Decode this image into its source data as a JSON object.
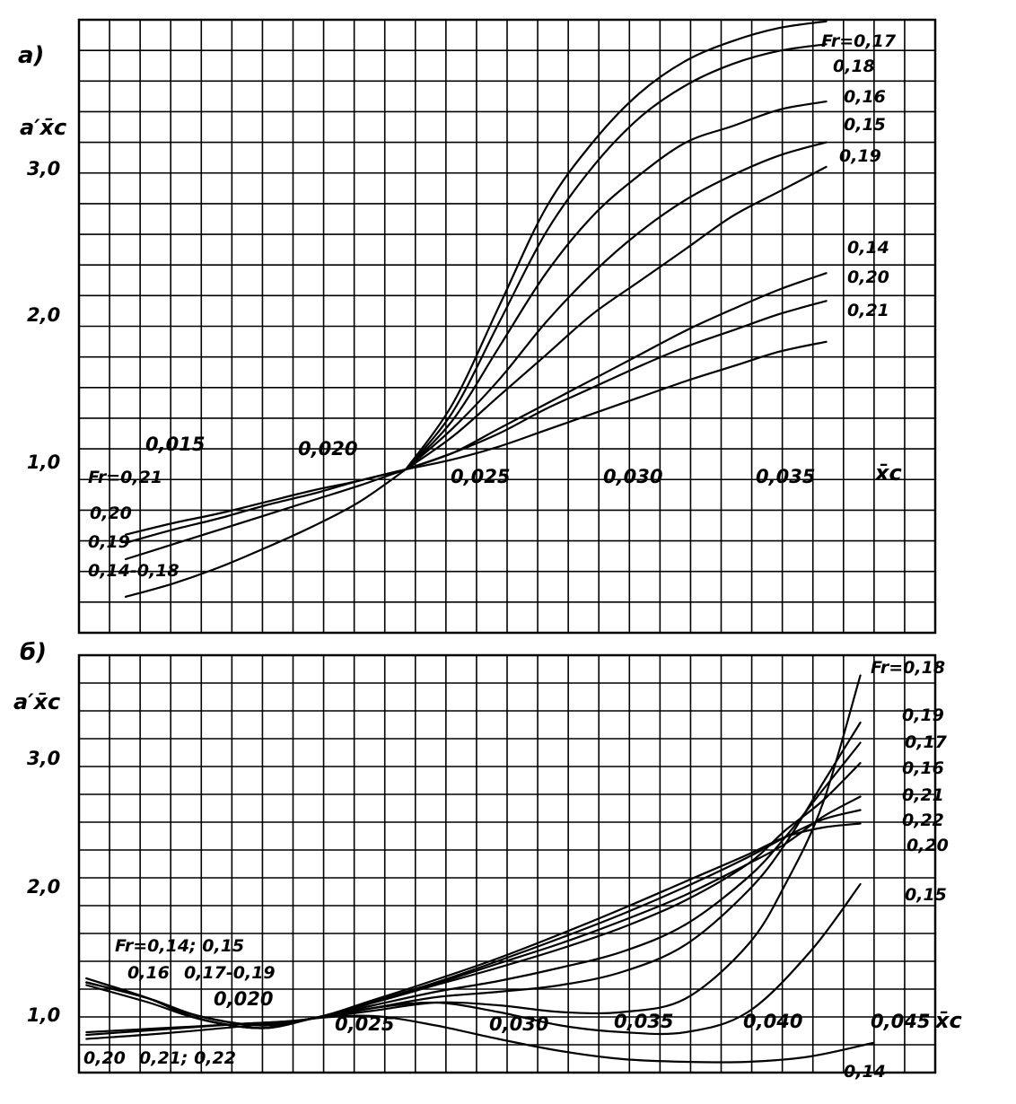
{
  "chart_data": [
    {
      "type": "line",
      "panel_label": "a)",
      "ylabel": "a′x̄c",
      "xlabel": "x̄c",
      "xlim": [
        0.012,
        0.0395
      ],
      "ylim": [
        0.0,
        3.75
      ],
      "grid": true,
      "x_tick_labels": [
        "0,015",
        "0,020",
        "0,025",
        "0,030",
        "0,035"
      ],
      "y_tick_labels": [
        "1,0",
        "2,0",
        "3,0"
      ],
      "series": [
        {
          "name": "0,17",
          "x": [
            0.0225,
            0.024,
            0.0255,
            0.027,
            0.0285,
            0.03,
            0.0315,
            0.033,
            0.0345,
            0.036
          ],
          "y": [
            1.0,
            1.4,
            2.0,
            2.6,
            3.0,
            3.3,
            3.5,
            3.62,
            3.7,
            3.74
          ]
        },
        {
          "name": "0,18",
          "x": [
            0.0225,
            0.024,
            0.0255,
            0.027,
            0.0285,
            0.03,
            0.0315,
            0.033,
            0.0345,
            0.036
          ],
          "y": [
            1.0,
            1.35,
            1.9,
            2.45,
            2.85,
            3.15,
            3.35,
            3.48,
            3.56,
            3.6
          ]
        },
        {
          "name": "0,16",
          "x": [
            0.0225,
            0.024,
            0.0255,
            0.027,
            0.0285,
            0.03,
            0.0315,
            0.033,
            0.0345,
            0.036
          ],
          "y": [
            1.0,
            1.3,
            1.75,
            2.2,
            2.55,
            2.8,
            3.0,
            3.1,
            3.2,
            3.25
          ]
        },
        {
          "name": "0,15",
          "x": [
            0.0225,
            0.024,
            0.0255,
            0.027,
            0.0285,
            0.03,
            0.0315,
            0.033,
            0.0345,
            0.036
          ],
          "y": [
            1.0,
            1.25,
            1.55,
            1.9,
            2.2,
            2.45,
            2.65,
            2.8,
            2.92,
            3.0
          ]
        },
        {
          "name": "0,19",
          "x": [
            0.0225,
            0.024,
            0.0255,
            0.027,
            0.0285,
            0.03,
            0.0315,
            0.033,
            0.0345,
            0.036
          ],
          "y": [
            1.0,
            1.2,
            1.45,
            1.7,
            1.95,
            2.15,
            2.35,
            2.55,
            2.7,
            2.85
          ]
        },
        {
          "name": "0,14",
          "x": [
            0.0225,
            0.024,
            0.0255,
            0.027,
            0.0285,
            0.03,
            0.0315,
            0.033,
            0.0345,
            0.036
          ],
          "y": [
            1.0,
            1.1,
            1.25,
            1.4,
            1.55,
            1.7,
            1.85,
            1.98,
            2.1,
            2.2
          ]
        },
        {
          "name": "0,20",
          "x": [
            0.0225,
            0.024,
            0.0255,
            0.027,
            0.0285,
            0.03,
            0.0315,
            0.033,
            0.0345,
            0.036
          ],
          "y": [
            1.0,
            1.1,
            1.22,
            1.37,
            1.5,
            1.63,
            1.75,
            1.85,
            1.95,
            2.03
          ]
        },
        {
          "name": "0,21",
          "x": [
            0.0225,
            0.024,
            0.0255,
            0.027,
            0.0285,
            0.03,
            0.0315,
            0.033,
            0.0345,
            0.036
          ],
          "y": [
            1.0,
            1.06,
            1.14,
            1.24,
            1.34,
            1.44,
            1.54,
            1.63,
            1.72,
            1.78
          ]
        },
        {
          "name": "Fr=0,21",
          "x": [
            0.0135,
            0.015,
            0.0165,
            0.018,
            0.0195,
            0.021,
            0.0225
          ],
          "y": [
            0.6,
            0.67,
            0.73,
            0.8,
            0.87,
            0.93,
            1.0
          ]
        },
        {
          "name": "0,20",
          "x": [
            0.0135,
            0.015,
            0.0165,
            0.018,
            0.0195,
            0.021,
            0.0225
          ],
          "y": [
            0.55,
            0.63,
            0.7,
            0.78,
            0.85,
            0.93,
            1.0
          ]
        },
        {
          "name": "0,19",
          "x": [
            0.0135,
            0.015,
            0.0165,
            0.018,
            0.0195,
            0.021,
            0.0225
          ],
          "y": [
            0.45,
            0.54,
            0.63,
            0.72,
            0.81,
            0.9,
            1.0
          ]
        },
        {
          "name": "0,14-0,18",
          "x": [
            0.0135,
            0.015,
            0.0165,
            0.018,
            0.0195,
            0.021,
            0.0225
          ],
          "y": [
            0.22,
            0.3,
            0.4,
            0.52,
            0.65,
            0.8,
            1.0
          ]
        }
      ],
      "curve_labels": {
        "right": [
          "Fr=0,17",
          "0,18",
          "0,16",
          "0,15",
          "0,19",
          "0,14",
          "0,20",
          "0,21"
        ],
        "left": [
          "Fr=0,21",
          "0,20",
          "0,19",
          "0,14-0,18"
        ]
      }
    },
    {
      "type": "line",
      "panel_label": "б)",
      "ylabel": "a′x̄c",
      "xlabel": "x̄c",
      "xlim": [
        0.0132,
        0.0475
      ],
      "ylim": [
        0.6,
        3.7
      ],
      "grid": true,
      "x_tick_labels": [
        "0,020",
        "0,025",
        "0,030",
        "0,035",
        "0,040",
        "0,045"
      ],
      "y_tick_labels": [
        "1,0",
        "2,0",
        "3,0"
      ],
      "series": [
        {
          "name": "0,18",
          "x": [
            0.0135,
            0.016,
            0.018,
            0.0205,
            0.0225,
            0.025,
            0.0275,
            0.03,
            0.0325,
            0.035,
            0.0375,
            0.04,
            0.0415,
            0.043,
            0.0445
          ],
          "y": [
            1.27,
            1.15,
            1.02,
            0.95,
            1.0,
            1.06,
            1.12,
            1.1,
            1.05,
            1.05,
            1.15,
            1.55,
            2.0,
            2.6,
            3.55
          ]
        },
        {
          "name": "0,19",
          "x": [
            0.0135,
            0.016,
            0.018,
            0.0205,
            0.0225,
            0.025,
            0.0275,
            0.03,
            0.0325,
            0.035,
            0.0375,
            0.04,
            0.0415,
            0.043,
            0.0445
          ],
          "y": [
            1.27,
            1.15,
            1.02,
            0.95,
            1.0,
            1.08,
            1.16,
            1.2,
            1.25,
            1.35,
            1.55,
            1.95,
            2.3,
            2.75,
            3.2
          ]
        },
        {
          "name": "0,17",
          "x": [
            0.0135,
            0.016,
            0.018,
            0.0205,
            0.0225,
            0.025,
            0.0275,
            0.03,
            0.0325,
            0.035,
            0.0375,
            0.04,
            0.0415,
            0.043,
            0.0445
          ],
          "y": [
            1.27,
            1.15,
            1.02,
            0.95,
            1.0,
            1.1,
            1.2,
            1.28,
            1.38,
            1.5,
            1.7,
            2.05,
            2.35,
            2.7,
            3.05
          ]
        },
        {
          "name": "0,16",
          "x": [
            0.0135,
            0.016,
            0.018,
            0.0205,
            0.0225,
            0.025,
            0.0275,
            0.03,
            0.0325,
            0.035,
            0.0375,
            0.04,
            0.0415,
            0.043,
            0.0445
          ],
          "y": [
            1.25,
            1.12,
            1.0,
            0.93,
            1.0,
            1.12,
            1.25,
            1.38,
            1.52,
            1.68,
            1.88,
            2.15,
            2.4,
            2.62,
            2.9
          ]
        },
        {
          "name": "0,21",
          "x": [
            0.0135,
            0.0165,
            0.0195,
            0.0225,
            0.025,
            0.0275,
            0.03,
            0.0325,
            0.035,
            0.0375,
            0.04,
            0.0415,
            0.043,
            0.0445
          ],
          "y": [
            0.9,
            0.93,
            0.96,
            1.0,
            1.12,
            1.26,
            1.41,
            1.56,
            1.73,
            1.92,
            2.15,
            2.3,
            2.5,
            2.65
          ]
        },
        {
          "name": "0,22",
          "x": [
            0.0135,
            0.0165,
            0.0195,
            0.0225,
            0.025,
            0.0275,
            0.03,
            0.0325,
            0.035,
            0.0375,
            0.04,
            0.0415,
            0.043,
            0.0445
          ],
          "y": [
            0.88,
            0.92,
            0.96,
            1.0,
            1.13,
            1.27,
            1.43,
            1.6,
            1.78,
            1.98,
            2.2,
            2.35,
            2.48,
            2.55
          ]
        },
        {
          "name": "0,20",
          "x": [
            0.0135,
            0.0165,
            0.0195,
            0.0225,
            0.025,
            0.0275,
            0.03,
            0.0325,
            0.035,
            0.0375,
            0.04,
            0.0415,
            0.043,
            0.0445
          ],
          "y": [
            0.85,
            0.89,
            0.94,
            1.0,
            1.14,
            1.29,
            1.45,
            1.63,
            1.82,
            2.02,
            2.22,
            2.35,
            2.42,
            2.45
          ]
        },
        {
          "name": "0,15",
          "x": [
            0.0135,
            0.016,
            0.018,
            0.0205,
            0.0225,
            0.025,
            0.0275,
            0.03,
            0.0325,
            0.035,
            0.0375,
            0.04,
            0.0425,
            0.0445
          ],
          "y": [
            1.3,
            1.15,
            1.0,
            0.93,
            1.0,
            1.08,
            1.12,
            1.05,
            0.95,
            0.9,
            0.9,
            1.05,
            1.5,
            2.0
          ]
        },
        {
          "name": "0,14",
          "x": [
            0.0135,
            0.016,
            0.018,
            0.0205,
            0.0225,
            0.025,
            0.0275,
            0.03,
            0.0325,
            0.035,
            0.0375,
            0.04,
            0.0425,
            0.045
          ],
          "y": [
            1.3,
            1.15,
            1.0,
            0.93,
            1.0,
            1.02,
            0.95,
            0.85,
            0.76,
            0.7,
            0.68,
            0.68,
            0.72,
            0.82
          ]
        }
      ],
      "curve_labels": {
        "right": [
          "Fr=0,18",
          "0,19",
          "0,17",
          "0,16",
          "0,21",
          "0,22",
          "0,20",
          "0,15"
        ],
        "left_top": [
          "Fr=0,14; 0,15",
          "0,16",
          "0,17-0,19"
        ],
        "left_bottom": [
          "0,20",
          "0,21; 0,22"
        ],
        "bottom": [
          "0,14"
        ]
      }
    }
  ]
}
